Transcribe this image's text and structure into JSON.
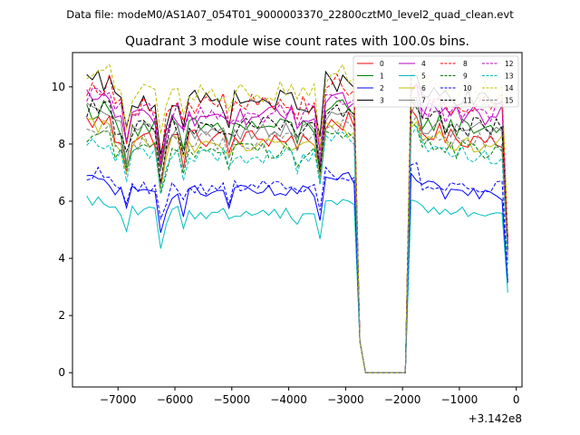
{
  "chart_data": {
    "type": "line",
    "suptitle": "Data file: modeM0/AS1A07_054T01_9000003370_22800cztM0_level2_quad_clean.evt",
    "title": "Quadrant 3 module wise count rates with 100.0s bins.",
    "xlabel": "",
    "ylabel": "",
    "offset_label": "+3.142e8",
    "xlim": [
      -7800,
      100
    ],
    "ylim": [
      -0.5,
      11.2
    ],
    "xticks": [
      -7000,
      -6000,
      -5000,
      -4000,
      -3000,
      -2000,
      -1000,
      0
    ],
    "xtick_labels": [
      "−7000",
      "−6000",
      "−5000",
      "−4000",
      "−3000",
      "−2000",
      "−1000",
      "0"
    ],
    "yticks": [
      0,
      2,
      4,
      6,
      8,
      10
    ],
    "ytick_labels": [
      "0",
      "2",
      "4",
      "6",
      "8",
      "10"
    ],
    "grid": false,
    "legend_location": "upper-right",
    "legend_columns": 4,
    "x_segments": [
      [
        -7550,
        -2950
      ],
      [
        -2850,
        -2650
      ],
      [
        -2050,
        -150
      ]
    ],
    "series": [
      {
        "name": "0",
        "color": "#ff0000",
        "dash": "solid",
        "base": 8.2
      },
      {
        "name": "1",
        "color": "#008000",
        "dash": "solid",
        "base": 8.6
      },
      {
        "name": "2",
        "color": "#0000ff",
        "dash": "solid",
        "base": 6.3
      },
      {
        "name": "3",
        "color": "#000000",
        "dash": "solid",
        "base": 9.5
      },
      {
        "name": "4",
        "color": "#bf00bf",
        "dash": "solid",
        "base": 9.0
      },
      {
        "name": "5",
        "color": "#00bfbf",
        "dash": "solid",
        "base": 5.6
      },
      {
        "name": "6",
        "color": "#bfbf00",
        "dash": "solid",
        "base": 8.0
      },
      {
        "name": "7",
        "color": "#808080",
        "dash": "solid",
        "base": 8.5
      },
      {
        "name": "8",
        "color": "#ff0000",
        "dash": "dashed",
        "base": 9.4
      },
      {
        "name": "9",
        "color": "#008000",
        "dash": "dashed",
        "base": 7.8
      },
      {
        "name": "10",
        "color": "#0000ff",
        "dash": "dashed",
        "base": 6.5
      },
      {
        "name": "11",
        "color": "#000000",
        "dash": "dashed",
        "base": 8.6
      },
      {
        "name": "12",
        "color": "#bf00bf",
        "dash": "dashed",
        "base": 9.1
      },
      {
        "name": "13",
        "color": "#00bfbf",
        "dash": "dashed",
        "base": 7.6
      },
      {
        "name": "14",
        "color": "#bfbf00",
        "dash": "dashed",
        "base": 9.8
      },
      {
        "name": "15",
        "color": "#808080",
        "dash": "dashed",
        "base": 8.1
      }
    ]
  }
}
